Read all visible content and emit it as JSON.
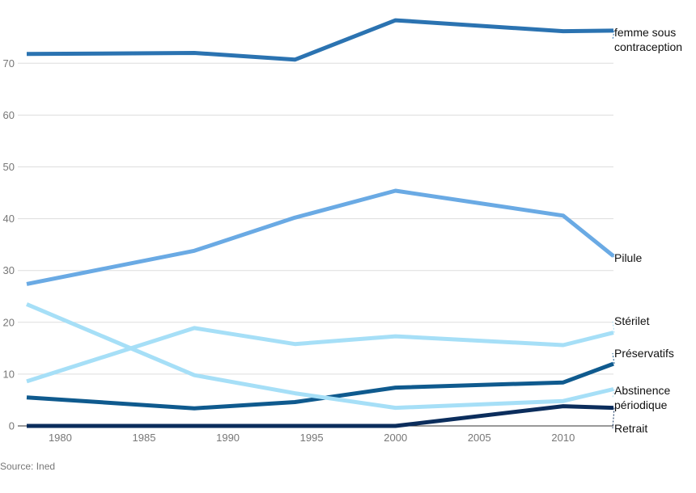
{
  "chart_data": {
    "type": "line",
    "x": [
      1978,
      1988,
      1994,
      2000,
      2010,
      2013
    ],
    "series": [
      {
        "name": "femme sous contraception",
        "label_lines": [
          "femme sous",
          "contraception"
        ],
        "color": "#2b73b1",
        "values": [
          71.8,
          72.0,
          70.7,
          78.3,
          76.2,
          76.3
        ]
      },
      {
        "name": "Pilule",
        "label_lines": [
          "Pilule"
        ],
        "color": "#6aaae4",
        "values": [
          27.4,
          33.8,
          40.2,
          45.4,
          40.6,
          32.8
        ]
      },
      {
        "name": "Stérilet",
        "label_lines": [
          "Stérilet"
        ],
        "color": "#a6dff7",
        "values": [
          8.6,
          18.9,
          15.8,
          17.3,
          15.6,
          18.0
        ]
      },
      {
        "name": "Préservatifs",
        "label_lines": [
          "Préservatifs"
        ],
        "color": "#0f5a8e",
        "values": [
          5.5,
          3.4,
          4.6,
          7.4,
          8.4,
          12.0
        ]
      },
      {
        "name": "Abstinence périodique",
        "label_lines": [
          "Abstinence",
          "périodique"
        ],
        "color": "#a6dff7",
        "values": [
          23.5,
          9.8,
          6.3,
          3.5,
          4.8,
          7.1
        ]
      },
      {
        "name": "Retrait",
        "label_lines": [
          "Retrait"
        ],
        "color": "#0b2d5c",
        "values": [
          0.0,
          0.0,
          0.0,
          0.0,
          3.8,
          3.5
        ]
      }
    ],
    "xlim": [
      1978,
      2013
    ],
    "ylim": [
      0,
      80
    ],
    "xticks": [
      1980,
      1985,
      1990,
      1995,
      2000,
      2005,
      2010
    ],
    "yticks": [
      0,
      10,
      20,
      30,
      40,
      50,
      60,
      70
    ],
    "grid": true,
    "source": "Source: Ined"
  }
}
